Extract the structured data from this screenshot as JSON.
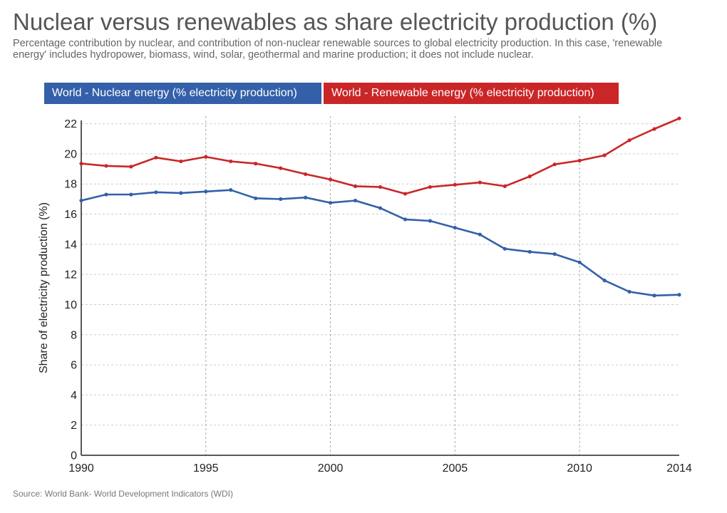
{
  "chart_data": {
    "type": "line",
    "title": "Nuclear versus renewables as share electricity production (%)",
    "subtitle": "Percentage contribution by nuclear, and contribution of non-nuclear renewable sources to global electricity production. In this case, 'renewable energy' includes hydropower, biomass, wind, solar, geothermal and marine production; it does not include nuclear.",
    "ylabel": "Share of electricity production (%)",
    "xlabel": "",
    "xlim": [
      1990,
      2014
    ],
    "ylim": [
      0,
      22.5
    ],
    "yticks": [
      "0",
      "2",
      "4",
      "6",
      "8",
      "10",
      "12",
      "14",
      "16",
      "18",
      "20",
      "22"
    ],
    "xticks": [
      "1990",
      "1995",
      "2000",
      "2005",
      "2010",
      "2014"
    ],
    "x": [
      1990,
      1991,
      1992,
      1993,
      1994,
      1995,
      1996,
      1997,
      1998,
      1999,
      2000,
      2001,
      2002,
      2003,
      2004,
      2005,
      2006,
      2007,
      2008,
      2009,
      2010,
      2011,
      2012,
      2013,
      2014
    ],
    "series": [
      {
        "name": "World - Nuclear energy (% electricity production)",
        "color": "#3360a9",
        "values": [
          16.9,
          17.3,
          17.3,
          17.45,
          17.4,
          17.5,
          17.6,
          17.05,
          17.0,
          17.1,
          16.75,
          16.9,
          16.4,
          15.65,
          15.55,
          15.1,
          14.65,
          13.7,
          13.5,
          13.35,
          12.8,
          11.6,
          10.85,
          10.6,
          10.65
        ]
      },
      {
        "name": "World - Renewable energy (% electricity production)",
        "color": "#ca2628",
        "values": [
          19.35,
          19.2,
          19.15,
          19.75,
          19.5,
          19.8,
          19.5,
          19.35,
          19.05,
          18.65,
          18.3,
          17.85,
          17.8,
          17.35,
          17.8,
          17.95,
          18.1,
          17.85,
          18.5,
          19.3,
          19.55,
          19.9,
          20.9,
          21.65,
          22.35
        ]
      }
    ],
    "grid": true,
    "legend_position": "top",
    "source": "Source: World Bank- World Development Indicators (WDI)"
  }
}
